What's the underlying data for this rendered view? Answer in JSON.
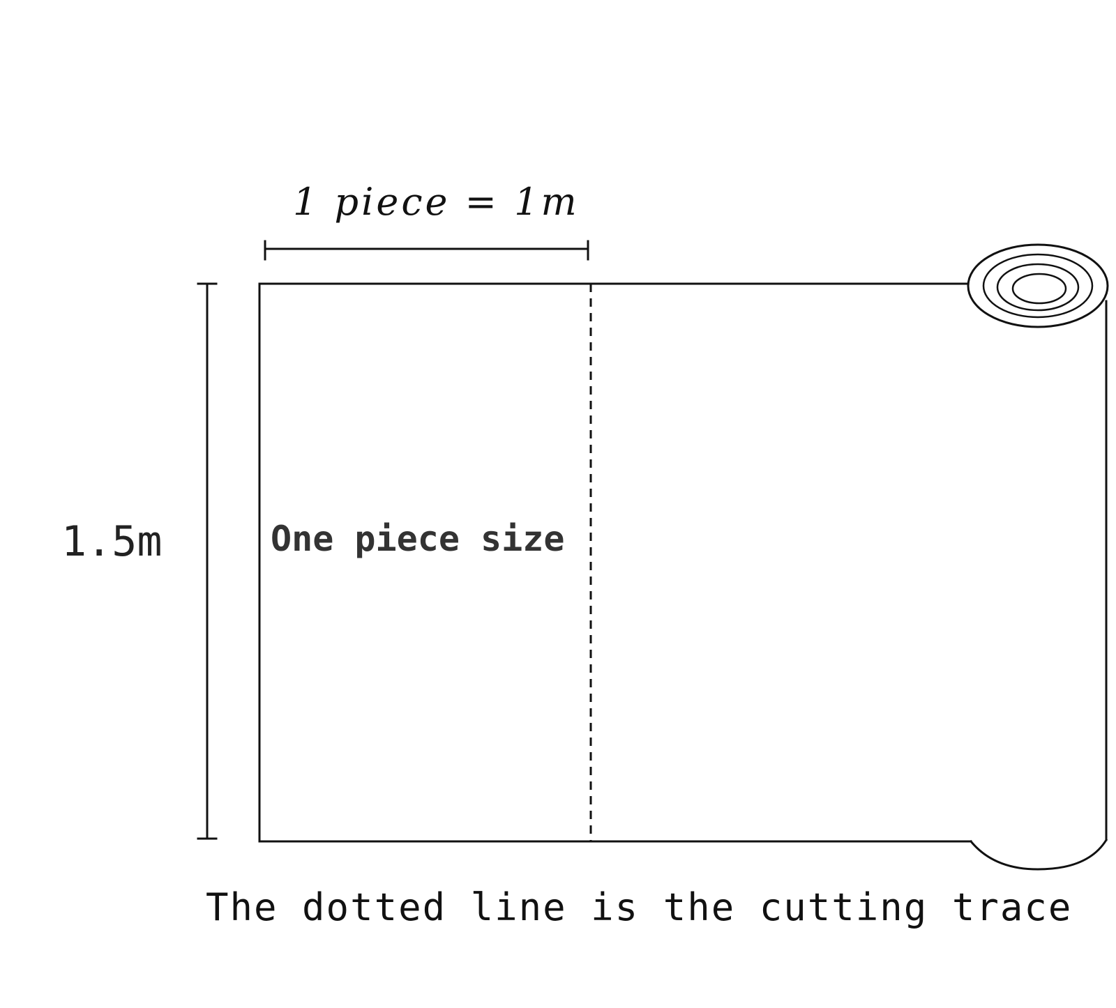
{
  "diagram": {
    "width_label": "1 piece = 1m",
    "height_label": "1.5m",
    "piece_label": "One piece size",
    "caption": "The dotted line is the cutting trace"
  },
  "colors": {
    "line": "#111111",
    "background": "#ffffff"
  }
}
